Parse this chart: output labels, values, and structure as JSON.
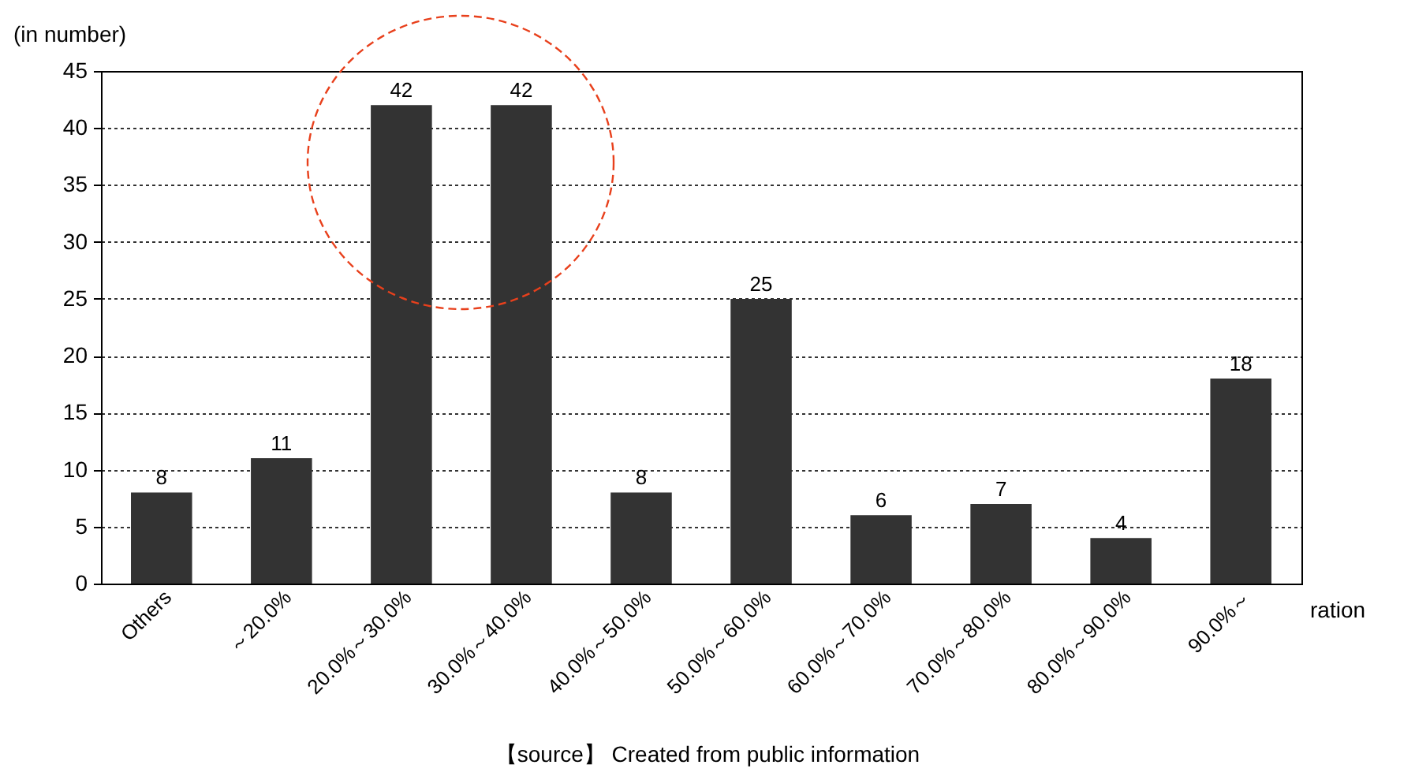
{
  "chart_data": {
    "type": "bar",
    "ylabel": "(in number)",
    "xlabel": "ration",
    "categories": [
      "Others",
      "～20.0%",
      "20.0%～30.0%",
      "30.0%～40.0%",
      "40.0%～50.0%",
      "50.0%～60.0%",
      "60.0%～70.0%",
      "70.0%～80.0%",
      "80.0%～90.0%",
      "90.0%～"
    ],
    "values": [
      8,
      11,
      42,
      42,
      8,
      25,
      6,
      7,
      4,
      18
    ],
    "color": "#333333",
    "ylim": [
      0,
      45
    ],
    "yticks": [
      0,
      5,
      10,
      15,
      20,
      25,
      30,
      35,
      40,
      45
    ],
    "grid": "y",
    "data_labels": true,
    "annotations": [
      "【source】 Created from public information"
    ]
  }
}
